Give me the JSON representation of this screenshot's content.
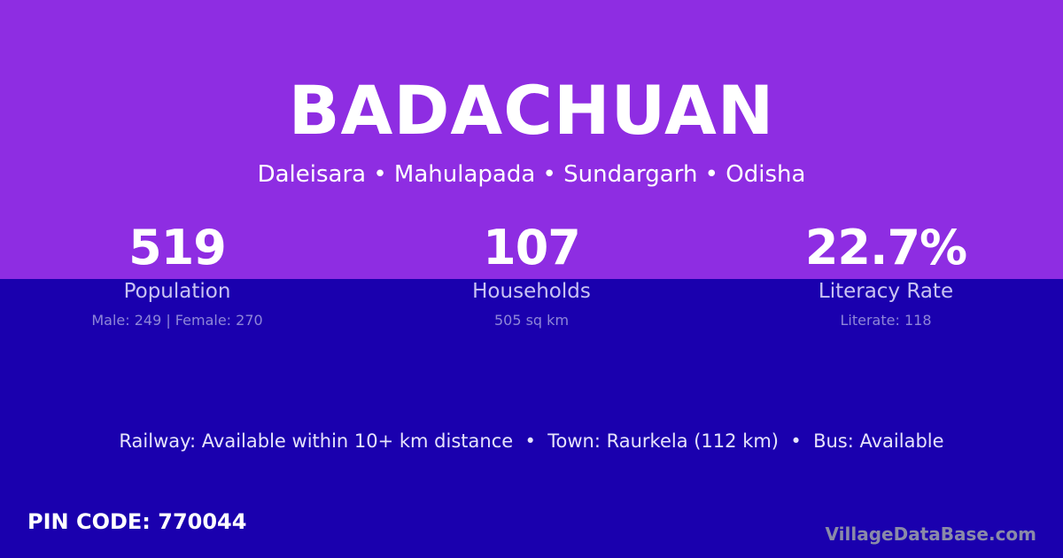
{
  "title": "BADACHUAN",
  "location": "Daleisara • Mahulapada • Sundargarh • Odisha",
  "stats": [
    {
      "value": "519",
      "label": "Population",
      "detail": "Male: 249 | Female: 270"
    },
    {
      "value": "107",
      "label": "Households",
      "detail": "505 sq km"
    },
    {
      "value": "22.7%",
      "label": "Literacy Rate",
      "detail": "Literate: 118"
    }
  ],
  "info": "Railway: Available within 10+ km distance  •  Town: Raurkela (112 km)  •  Bus: Available",
  "pin": "PIN CODE: 770044",
  "brand": "VillageDataBase.com",
  "colors": {
    "top": "#8e2de2",
    "bottom": "#1a00ae"
  }
}
